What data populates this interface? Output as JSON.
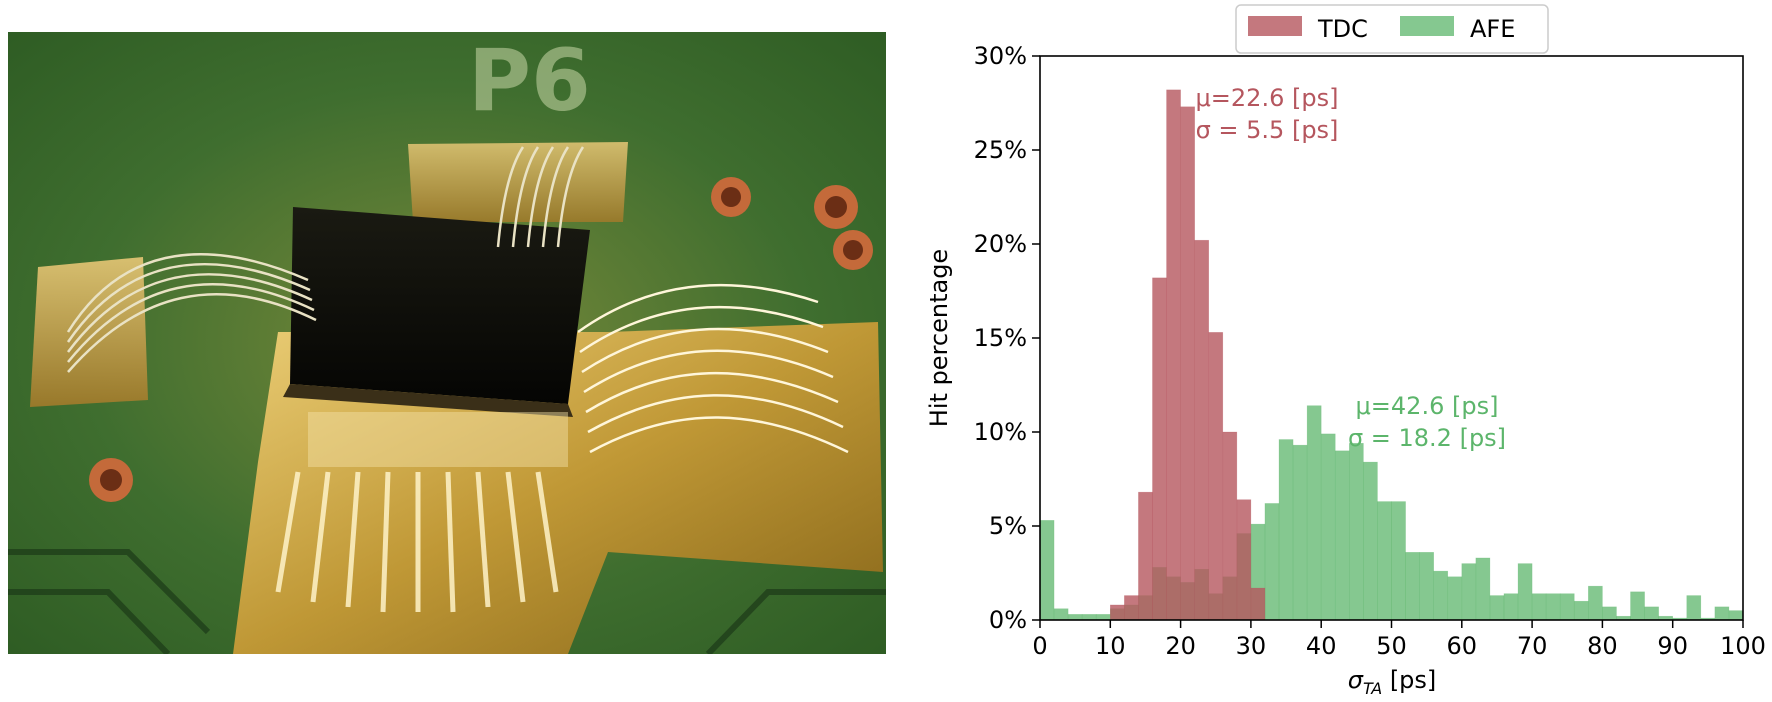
{
  "photo": {
    "caption_icon": "chip-on-pcb-photo",
    "silkscreen_text": "P6"
  },
  "chart_data": {
    "type": "bar",
    "title": "",
    "xlabel": "σ",
    "xlabel_sub": "TA",
    "xlabel_unit": " [ps]",
    "ylabel": "Hit percentage",
    "xlim": [
      0,
      100
    ],
    "ylim": [
      0,
      30
    ],
    "xticks": [
      "0",
      "10",
      "20",
      "30",
      "40",
      "50",
      "60",
      "70",
      "80",
      "90",
      "100"
    ],
    "yticks": [
      "0%",
      "5%",
      "10%",
      "15%",
      "20%",
      "25%",
      "30%"
    ],
    "bin_width": 2,
    "legend_position": "top-center",
    "grid": false,
    "series": [
      {
        "name": "TDC",
        "color": "#b5565e",
        "opacity": 0.8,
        "bins_start": [
          10,
          12,
          14,
          16,
          18,
          20,
          22,
          24,
          26,
          28,
          30
        ],
        "values": [
          0.8,
          1.3,
          6.8,
          18.2,
          28.2,
          27.3,
          20.2,
          15.3,
          10.0,
          6.4,
          1.7
        ],
        "annotation": [
          "μ=22.6 [ps]",
          "σ = 5.5 [ps]"
        ]
      },
      {
        "name": "AFE",
        "color": "#5cb56b",
        "opacity": 0.75,
        "bins_start": [
          0,
          2,
          4,
          6,
          8,
          10,
          12,
          14,
          16,
          18,
          20,
          22,
          24,
          26,
          28,
          30,
          32,
          34,
          36,
          38,
          40,
          42,
          44,
          46,
          48,
          50,
          52,
          54,
          56,
          58,
          60,
          62,
          64,
          66,
          68,
          70,
          72,
          74,
          76,
          78,
          80,
          82,
          84,
          86,
          88,
          90,
          92,
          94,
          96,
          98
        ],
        "values": [
          5.3,
          0.6,
          0.3,
          0.3,
          0.3,
          0.6,
          0.8,
          1.3,
          2.8,
          2.3,
          2.0,
          2.7,
          1.4,
          2.3,
          4.6,
          5.1,
          6.2,
          9.6,
          9.3,
          11.4,
          9.9,
          9.0,
          9.4,
          8.4,
          6.3,
          6.3,
          3.6,
          3.6,
          2.6,
          2.3,
          3.0,
          3.3,
          1.3,
          1.4,
          3.0,
          1.4,
          1.4,
          1.4,
          1.0,
          1.8,
          0.7,
          0.2,
          1.5,
          0.7,
          0.2,
          0.1,
          1.3,
          0.1,
          0.7,
          0.5
        ],
        "annotation": [
          "μ=42.6 [ps]",
          "σ = 18.2 [ps]"
        ]
      }
    ]
  }
}
